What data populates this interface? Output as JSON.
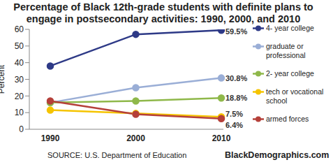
{
  "chart_data": {
    "type": "line",
    "title": "Percentage of Black 12th-grade students with definite plans to engage in postsecondary activities: 1990, 2000, and 2010",
    "y_label": "Percent",
    "source": "SOURCE: U.S. Department of Education",
    "credit": "BlackDemographics.com",
    "categories": [
      "1990",
      "2000",
      "2010"
    ],
    "ylim": [
      0,
      60
    ],
    "yticks": [
      0,
      10,
      20,
      30,
      40,
      50,
      60
    ],
    "grid": false,
    "legend": "right",
    "marker": "circle",
    "data_labels": true,
    "series": [
      {
        "name": "4- year college",
        "color": "#2e3a87",
        "values": [
          38,
          57,
          59.5
        ],
        "value_labels": [
          null,
          null,
          "59.5%"
        ]
      },
      {
        "name": "graduate or professional",
        "color": "#9aaed6",
        "values": [
          16,
          25,
          30.8
        ],
        "value_labels": [
          null,
          null,
          "30.8%"
        ]
      },
      {
        "name": "2- year college",
        "color": "#8fb84a",
        "values": [
          16,
          17,
          18.8
        ],
        "value_labels": [
          null,
          null,
          "18.8%"
        ]
      },
      {
        "name": "tech or vocational school",
        "color": "#f5c400",
        "values": [
          11.5,
          9.5,
          7.5
        ],
        "value_labels": [
          null,
          null,
          "7.5%"
        ]
      },
      {
        "name": "armed forces",
        "color": "#b5403a",
        "values": [
          17,
          9,
          6.4
        ],
        "value_labels": [
          null,
          null,
          "6.4%"
        ]
      }
    ]
  }
}
